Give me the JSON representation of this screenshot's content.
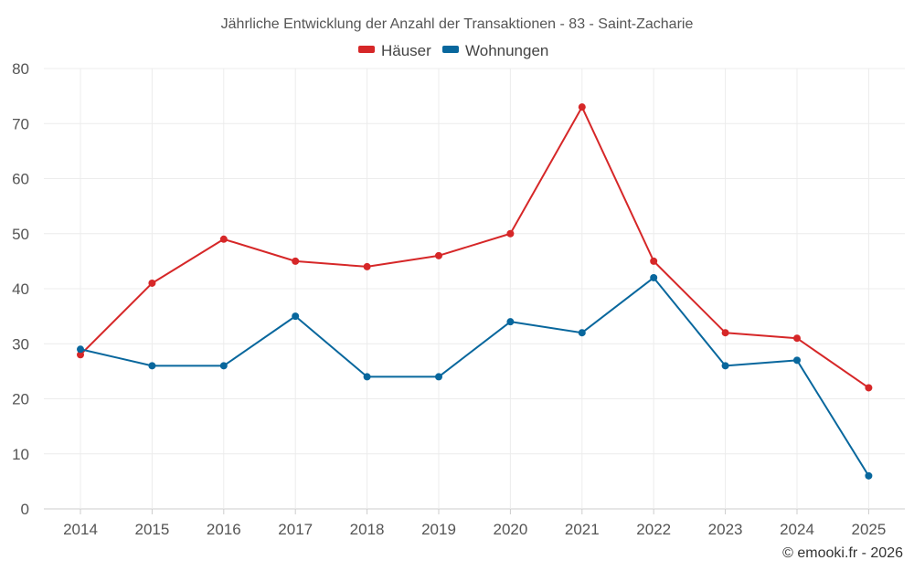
{
  "chart_data": {
    "type": "line",
    "title": "Jährliche Entwicklung der Anzahl der Transaktionen - 83 - Saint-Zacharie",
    "categories": [
      "2014",
      "2015",
      "2016",
      "2017",
      "2018",
      "2019",
      "2020",
      "2021",
      "2022",
      "2023",
      "2024",
      "2025"
    ],
    "series": [
      {
        "name": "Häuser",
        "color": "#d62728",
        "values": [
          28,
          41,
          49,
          45,
          44,
          46,
          50,
          73,
          45,
          32,
          31,
          22
        ]
      },
      {
        "name": "Wohnungen",
        "color": "#08679d",
        "values": [
          29,
          26,
          26,
          35,
          24,
          24,
          34,
          32,
          42,
          26,
          27,
          6
        ]
      }
    ],
    "ylim": [
      0,
      80
    ],
    "yticks": [
      0,
      10,
      20,
      30,
      40,
      50,
      60,
      70,
      80
    ],
    "xlabel": "",
    "ylabel": "",
    "grid": true,
    "legend_position": "top-center"
  },
  "credit": "© emooki.fr - 2026"
}
